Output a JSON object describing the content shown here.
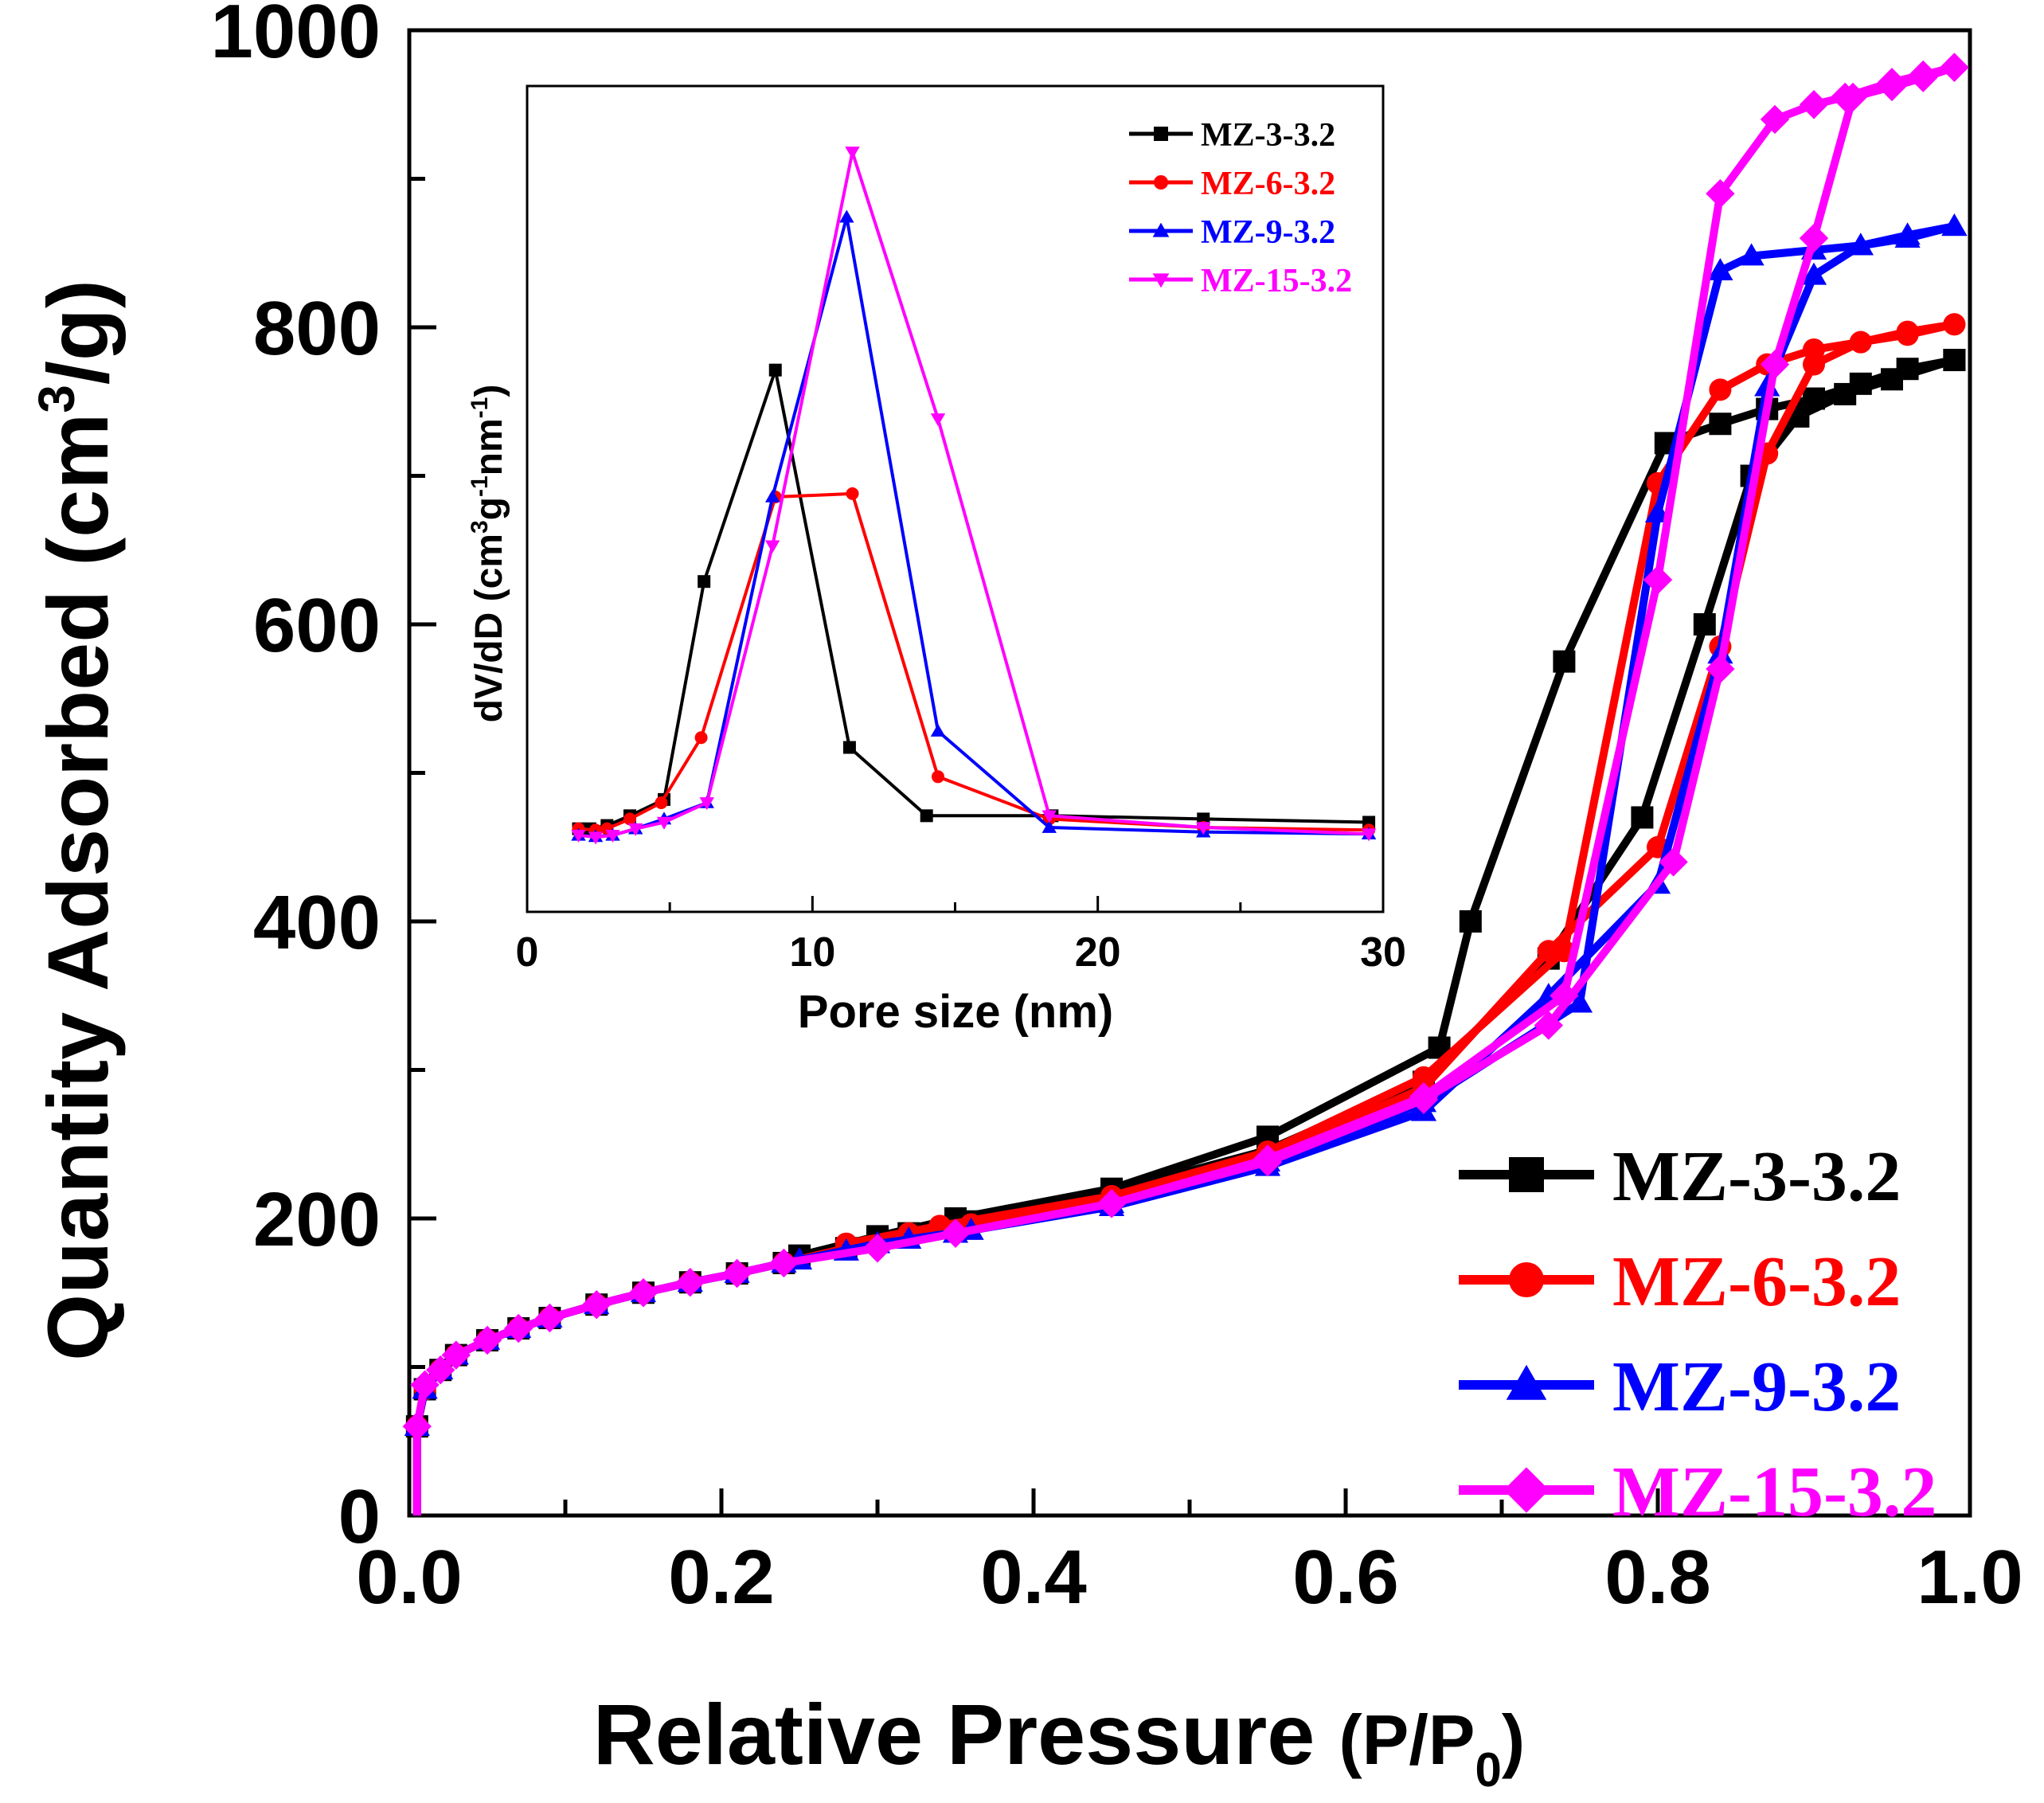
{
  "chart_data": [
    {
      "type": "line",
      "xlabel_main": "Relative Pressure ",
      "xlabel_unit_open": "(P/P",
      "xlabel_unit_sub": "0",
      "xlabel_unit_close": ")",
      "ylabel_main": "Quantity Adsorbed (cm",
      "ylabel_sup": "3",
      "ylabel_end": "/g)",
      "xlim": [
        0.0,
        1.0
      ],
      "ylim": [
        0,
        1000
      ],
      "xticks": [
        0.0,
        0.2,
        0.4,
        0.6,
        0.8,
        1.0
      ],
      "xtick_labels": [
        "0.0",
        "0.2",
        "0.4",
        "0.6",
        "0.8",
        "1.0"
      ],
      "yticks": [
        0,
        200,
        400,
        600,
        800,
        1000
      ],
      "ytick_labels": [
        "0",
        "200",
        "400",
        "600",
        "800",
        "1000"
      ],
      "legend_position": "bottom-right",
      "series": [
        {
          "name": "MZ-3-3.2",
          "color": "#000000",
          "marker": "square",
          "adsorption": [
            [
              0.005,
              0
            ],
            [
              0.005,
              60
            ],
            [
              0.01,
              85
            ],
            [
              0.02,
              98
            ],
            [
              0.03,
              108
            ],
            [
              0.05,
              118
            ],
            [
              0.07,
              126
            ],
            [
              0.09,
              133
            ],
            [
              0.12,
              142
            ],
            [
              0.15,
              150
            ],
            [
              0.18,
              157
            ],
            [
              0.21,
              163
            ],
            [
              0.24,
              170
            ],
            [
              0.28,
              180
            ],
            [
              0.32,
              190
            ],
            [
              0.36,
              198
            ],
            [
              0.45,
              218
            ],
            [
              0.55,
              246
            ],
            [
              0.65,
              292
            ],
            [
              0.73,
              375
            ],
            [
              0.79,
              470
            ],
            [
              0.83,
              600
            ],
            [
              0.86,
              700
            ],
            [
              0.89,
              740
            ],
            [
              0.92,
              755
            ],
            [
              0.95,
              765
            ],
            [
              0.99,
              778
            ]
          ],
          "desorption": [
            [
              0.99,
              778
            ],
            [
              0.96,
              772
            ],
            [
              0.93,
              762
            ],
            [
              0.9,
              752
            ],
            [
              0.87,
              745
            ],
            [
              0.84,
              735
            ],
            [
              0.805,
              722
            ],
            [
              0.74,
              575
            ],
            [
              0.68,
              400
            ],
            [
              0.66,
              315
            ],
            [
              0.55,
              255
            ],
            [
              0.45,
              220
            ],
            [
              0.35,
              200
            ],
            [
              0.3,
              188
            ],
            [
              0.25,
              175
            ]
          ]
        },
        {
          "name": "MZ-6-3.2",
          "color": "#ff0000",
          "marker": "circle",
          "adsorption": [
            [
              0.005,
              0
            ],
            [
              0.005,
              60
            ],
            [
              0.01,
              85
            ],
            [
              0.02,
              98
            ],
            [
              0.03,
              108
            ],
            [
              0.05,
              118
            ],
            [
              0.07,
              126
            ],
            [
              0.09,
              133
            ],
            [
              0.12,
              142
            ],
            [
              0.15,
              150
            ],
            [
              0.18,
              157
            ],
            [
              0.21,
              163
            ],
            [
              0.24,
              170
            ],
            [
              0.28,
              180
            ],
            [
              0.32,
              190
            ],
            [
              0.36,
              196
            ],
            [
              0.45,
              215
            ],
            [
              0.55,
              242
            ],
            [
              0.65,
              288
            ],
            [
              0.73,
              380
            ],
            [
              0.8,
              450
            ],
            [
              0.84,
              585
            ],
            [
              0.87,
              715
            ],
            [
              0.9,
              775
            ],
            [
              0.93,
              790
            ],
            [
              0.96,
              795
            ],
            [
              0.99,
              802
            ]
          ],
          "desorption": [
            [
              0.99,
              802
            ],
            [
              0.96,
              797
            ],
            [
              0.93,
              790
            ],
            [
              0.9,
              785
            ],
            [
              0.87,
              775
            ],
            [
              0.84,
              758
            ],
            [
              0.8,
              695
            ],
            [
              0.74,
              380
            ],
            [
              0.65,
              295
            ],
            [
              0.55,
              245
            ],
            [
              0.45,
              215
            ],
            [
              0.34,
              195
            ],
            [
              0.28,
              183
            ]
          ]
        },
        {
          "name": "MZ-9-3.2",
          "color": "#0000ff",
          "marker": "triangle",
          "adsorption": [
            [
              0.005,
              0
            ],
            [
              0.005,
              60
            ],
            [
              0.01,
              85
            ],
            [
              0.02,
              98
            ],
            [
              0.03,
              108
            ],
            [
              0.05,
              118
            ],
            [
              0.07,
              126
            ],
            [
              0.09,
              133
            ],
            [
              0.12,
              142
            ],
            [
              0.15,
              150
            ],
            [
              0.18,
              157
            ],
            [
              0.21,
              163
            ],
            [
              0.24,
              170
            ],
            [
              0.28,
              178
            ],
            [
              0.32,
              186
            ],
            [
              0.36,
              192
            ],
            [
              0.45,
              208
            ],
            [
              0.55,
              235
            ],
            [
              0.65,
              272
            ],
            [
              0.73,
              350
            ],
            [
              0.8,
              425
            ],
            [
              0.84,
              580
            ],
            [
              0.87,
              760
            ],
            [
              0.9,
              835
            ],
            [
              0.93,
              855
            ],
            [
              0.96,
              862
            ],
            [
              0.99,
              868
            ]
          ],
          "desorption": [
            [
              0.99,
              868
            ],
            [
              0.96,
              860
            ],
            [
              0.93,
              855
            ],
            [
              0.9,
              852
            ],
            [
              0.86,
              848
            ],
            [
              0.84,
              838
            ],
            [
              0.8,
              675
            ],
            [
              0.75,
              345
            ],
            [
              0.65,
              278
            ],
            [
              0.55,
              238
            ],
            [
              0.45,
              210
            ],
            [
              0.35,
              190
            ],
            [
              0.3,
              183
            ],
            [
              0.25,
              172
            ]
          ]
        },
        {
          "name": "MZ-15-3.2",
          "color": "#ff00ff",
          "marker": "diamond",
          "adsorption": [
            [
              0.005,
              0
            ],
            [
              0.005,
              60
            ],
            [
              0.01,
              88
            ],
            [
              0.02,
              98
            ],
            [
              0.03,
              108
            ],
            [
              0.05,
              118
            ],
            [
              0.07,
              126
            ],
            [
              0.09,
              133
            ],
            [
              0.12,
              142
            ],
            [
              0.15,
              150
            ],
            [
              0.18,
              157
            ],
            [
              0.21,
              163
            ],
            [
              0.24,
              170
            ],
            [
              0.3,
              180
            ],
            [
              0.35,
              190
            ],
            [
              0.45,
              210
            ],
            [
              0.55,
              238
            ],
            [
              0.65,
              280
            ],
            [
              0.73,
              330
            ],
            [
              0.81,
              440
            ],
            [
              0.84,
              570
            ],
            [
              0.875,
              775
            ],
            [
              0.9,
              860
            ],
            [
              0.925,
              955
            ],
            [
              0.95,
              962
            ],
            [
              0.97,
              968
            ],
            [
              0.99,
              975
            ]
          ],
          "desorption": [
            [
              0.99,
              975
            ],
            [
              0.97,
              970
            ],
            [
              0.95,
              965
            ],
            [
              0.92,
              955
            ],
            [
              0.9,
              950
            ],
            [
              0.875,
              940
            ],
            [
              0.84,
              890
            ],
            [
              0.8,
              630
            ],
            [
              0.74,
              350
            ],
            [
              0.65,
              282
            ],
            [
              0.55,
              240
            ],
            [
              0.45,
              210
            ],
            [
              0.35,
              190
            ]
          ]
        }
      ]
    },
    {
      "type": "line",
      "xlabel": "Pore size (nm)",
      "ylabel_main": "dV/dD (cm",
      "ylabel_sup1": "3",
      "ylabel_mid1": "g",
      "ylabel_sup2": "-1",
      "ylabel_mid2": "nm",
      "ylabel_sup3": "-1",
      "ylabel_end": ")",
      "xlim": [
        0,
        30
      ],
      "ylim": [
        0,
        1
      ],
      "xticks": [
        0,
        10,
        20,
        30
      ],
      "xtick_labels": [
        "0",
        "10",
        "20",
        "30"
      ],
      "legend_position": "top-right",
      "series": [
        {
          "name": "MZ-3-3.2",
          "color": "#000000",
          "marker": "square",
          "points": [
            [
              1.8,
              0.02
            ],
            [
              2.2,
              0.02
            ],
            [
              2.8,
              0.025
            ],
            [
              3.6,
              0.04
            ],
            [
              4.8,
              0.065
            ],
            [
              6.2,
              0.4
            ],
            [
              8.7,
              0.725
            ],
            [
              11.3,
              0.145
            ],
            [
              14,
              0.04
            ],
            [
              18.4,
              0.04
            ],
            [
              23.7,
              0.035
            ],
            [
              29.5,
              0.03
            ]
          ]
        },
        {
          "name": "MZ-6-3.2",
          "color": "#ff0000",
          "marker": "circle",
          "points": [
            [
              1.8,
              0.02
            ],
            [
              2.4,
              0.018
            ],
            [
              2.8,
              0.02
            ],
            [
              3.6,
              0.035
            ],
            [
              4.7,
              0.06
            ],
            [
              6.1,
              0.16
            ],
            [
              8.7,
              0.53
            ],
            [
              11.4,
              0.535
            ],
            [
              14.4,
              0.1
            ],
            [
              18.3,
              0.035
            ],
            [
              23.7,
              0.022
            ],
            [
              29.5,
              0.018
            ]
          ]
        },
        {
          "name": "MZ-9-3.2",
          "color": "#0000ff",
          "marker": "triangle",
          "points": [
            [
              1.8,
              0.01
            ],
            [
              2.4,
              0.008
            ],
            [
              3,
              0.01
            ],
            [
              3.8,
              0.02
            ],
            [
              4.8,
              0.035
            ],
            [
              6.3,
              0.06
            ],
            [
              8.6,
              0.53
            ],
            [
              11.2,
              0.96
            ],
            [
              14.4,
              0.17
            ],
            [
              18.3,
              0.022
            ],
            [
              23.7,
              0.015
            ],
            [
              29.5,
              0.012
            ]
          ]
        },
        {
          "name": "MZ-15-3.2",
          "color": "#ff00ff",
          "marker": "triangle-down",
          "points": [
            [
              1.8,
              0.01
            ],
            [
              2.4,
              0.007
            ],
            [
              3,
              0.01
            ],
            [
              3.8,
              0.02
            ],
            [
              4.8,
              0.03
            ],
            [
              6.3,
              0.06
            ],
            [
              8.6,
              0.455
            ],
            [
              11.4,
              1.06
            ],
            [
              14.4,
              0.65
            ],
            [
              18.3,
              0.04
            ],
            [
              23.7,
              0.022
            ],
            [
              29.5,
              0.012
            ]
          ]
        }
      ]
    }
  ]
}
